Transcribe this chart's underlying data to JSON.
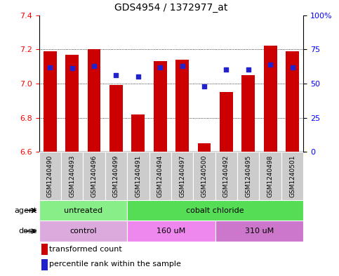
{
  "title": "GDS4954 / 1372977_at",
  "samples": [
    "GSM1240490",
    "GSM1240493",
    "GSM1240496",
    "GSM1240499",
    "GSM1240491",
    "GSM1240494",
    "GSM1240497",
    "GSM1240500",
    "GSM1240492",
    "GSM1240495",
    "GSM1240498",
    "GSM1240501"
  ],
  "transformed_count": [
    7.19,
    7.17,
    7.2,
    6.99,
    6.82,
    7.13,
    7.14,
    6.65,
    6.95,
    7.05,
    7.22,
    7.19
  ],
  "percentile_rank": [
    62,
    61,
    63,
    56,
    55,
    62,
    63,
    48,
    60,
    60,
    64,
    62
  ],
  "bar_bottom": 6.6,
  "ylim_left": [
    6.6,
    7.4
  ],
  "ylim_right": [
    0,
    100
  ],
  "yticks_left": [
    6.6,
    6.8,
    7.0,
    7.2,
    7.4
  ],
  "yticks_right": [
    0,
    25,
    50,
    75,
    100
  ],
  "ytick_labels_right": [
    "0",
    "25",
    "50",
    "75",
    "100%"
  ],
  "bar_color": "#cc0000",
  "dot_color": "#2222cc",
  "agent_groups": [
    {
      "label": "untreated",
      "start": 0,
      "end": 4,
      "color": "#88ee88"
    },
    {
      "label": "cobalt chloride",
      "start": 4,
      "end": 12,
      "color": "#55dd55"
    }
  ],
  "dose_groups": [
    {
      "label": "control",
      "start": 0,
      "end": 4,
      "color": "#ddaadd"
    },
    {
      "label": "160 uM",
      "start": 4,
      "end": 8,
      "color": "#ee88ee"
    },
    {
      "label": "310 uM",
      "start": 8,
      "end": 12,
      "color": "#cc77cc"
    }
  ],
  "legend_bar_label": "transformed count",
  "legend_dot_label": "percentile rank within the sample",
  "agent_label": "agent",
  "dose_label": "dose",
  "sample_bg_color": "#cccccc",
  "title_fontsize": 10,
  "tick_fontsize": 8,
  "sample_fontsize": 6.5,
  "label_fontsize": 8,
  "row_fontsize": 8
}
